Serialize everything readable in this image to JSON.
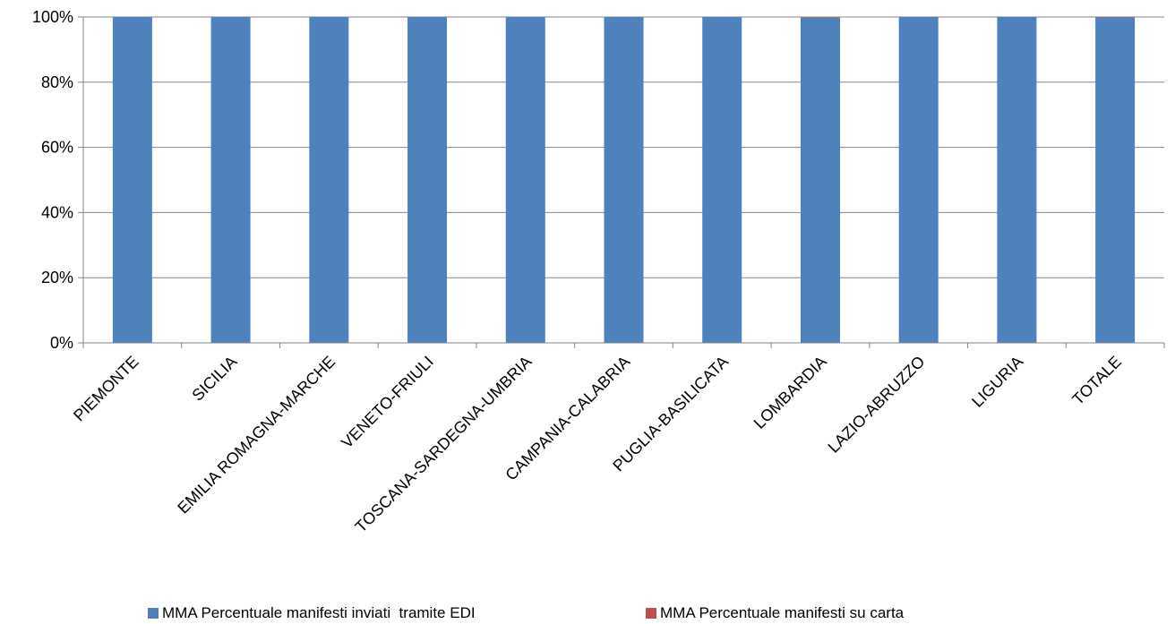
{
  "chart_data": {
    "type": "bar",
    "stacked": true,
    "categories": [
      "PIEMONTE",
      "SICILIA",
      "EMILIA ROMAGNA-MARCHE",
      "VENETO-FRIULI",
      "TOSCANA-SARDEGNA-UMBRIA",
      "CAMPANIA-CALABRIA",
      "PUGLIA-BASILICATA",
      "LOMBARDIA",
      "LAZIO-ABRUZZO",
      "LIGURIA",
      "TOTALE"
    ],
    "series": [
      {
        "name": "MMA Percentuale manifesti inviati  tramite EDI",
        "color": "#4f81bd",
        "values": [
          100,
          100,
          100,
          100,
          100,
          100,
          100,
          99.8,
          100,
          100,
          99.9
        ]
      },
      {
        "name": "MMA Percentuale manifesti su carta",
        "color": "#c0504d",
        "values": [
          0,
          0,
          0,
          0,
          0,
          0,
          0,
          0.2,
          0,
          0,
          0.1
        ]
      }
    ],
    "yticks": [
      "0%",
      "20%",
      "40%",
      "60%",
      "80%",
      "100%"
    ],
    "ylim": [
      0,
      100
    ],
    "grid": true,
    "legend_position": "bottom",
    "title": "",
    "xlabel": "",
    "ylabel": ""
  }
}
